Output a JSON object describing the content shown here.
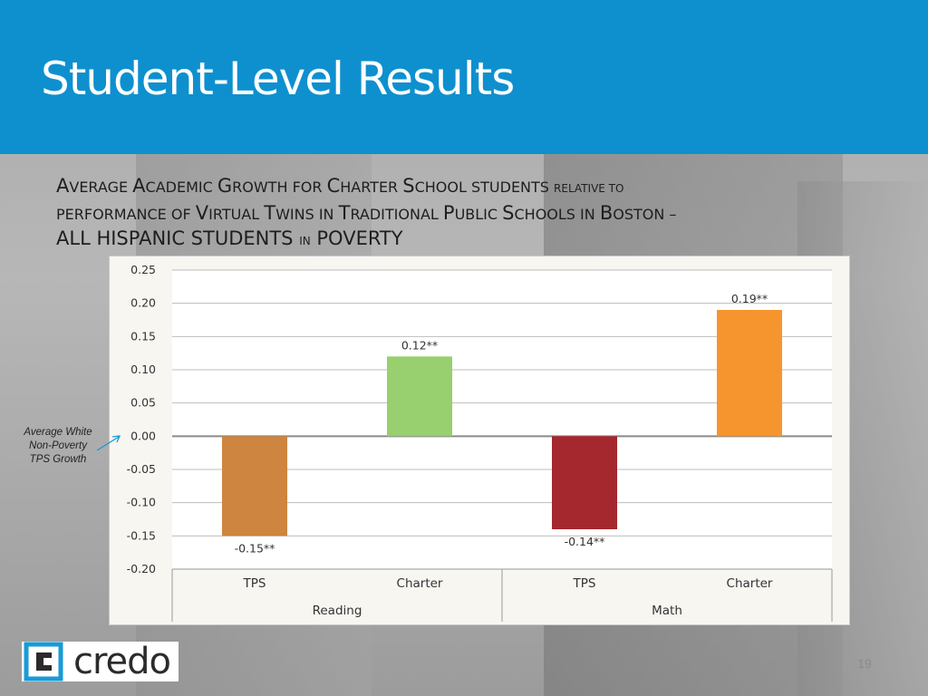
{
  "slide": {
    "title": "Student-Level Results",
    "subtitle": {
      "line1": [
        {
          "t": "A",
          "c": "big"
        },
        {
          "t": "VERAGE ",
          "c": "sc"
        },
        {
          "t": "A",
          "c": "big"
        },
        {
          "t": "CADEMIC ",
          "c": "sc"
        },
        {
          "t": "G",
          "c": "big"
        },
        {
          "t": "ROWTH FOR ",
          "c": "sc"
        },
        {
          "t": "C",
          "c": "big"
        },
        {
          "t": "HARTER ",
          "c": "sc"
        },
        {
          "t": "S",
          "c": "big"
        },
        {
          "t": "CHOOL STUDENTS ",
          "c": "sc"
        },
        {
          "t": "RELATIVE TO",
          "c": "small"
        }
      ],
      "line2": [
        {
          "t": "PERFORMANCE OF ",
          "c": "sc"
        },
        {
          "t": "V",
          "c": "big"
        },
        {
          "t": "IRTUAL ",
          "c": "sc"
        },
        {
          "t": "T",
          "c": "big"
        },
        {
          "t": "WINS IN ",
          "c": "sc"
        },
        {
          "t": "T",
          "c": "big"
        },
        {
          "t": "RADITIONAL ",
          "c": "sc"
        },
        {
          "t": "P",
          "c": "big"
        },
        {
          "t": "UBLIC ",
          "c": "sc"
        },
        {
          "t": "S",
          "c": "big"
        },
        {
          "t": "CHOOLS IN ",
          "c": "sc"
        },
        {
          "t": "B",
          "c": "big"
        },
        {
          "t": "OSTON –",
          "c": "sc"
        }
      ],
      "line3": [
        {
          "t": "ALL HISPANIC STUDENTS ",
          "c": "big"
        },
        {
          "t": "IN",
          "c": "small"
        },
        {
          "t": " POVERTY",
          "c": "big"
        }
      ]
    },
    "annotation": "Average White Non-Poverty TPS Growth",
    "logo_text": "credo",
    "page_number": "19"
  },
  "colors": {
    "header": "#0e90cf",
    "annotation_arrow": "#1a9ad6"
  },
  "chart_data": {
    "type": "bar",
    "ylim": [
      -0.2,
      0.25
    ],
    "yticks": [
      "0.25",
      "0.20",
      "0.15",
      "0.10",
      "0.05",
      "0.00",
      "-0.05",
      "-0.10",
      "-0.15",
      "-0.20"
    ],
    "ytick_values": [
      0.25,
      0.2,
      0.15,
      0.1,
      0.05,
      0.0,
      -0.05,
      -0.1,
      -0.15,
      -0.2
    ],
    "grid": true,
    "categories": [
      "TPS",
      "Charter",
      "TPS",
      "Charter"
    ],
    "groups": [
      {
        "label": "Reading",
        "categories": [
          "TPS",
          "Charter"
        ]
      },
      {
        "label": "Math",
        "categories": [
          "TPS",
          "Charter"
        ]
      }
    ],
    "values": [
      -0.15,
      0.12,
      -0.14,
      0.19
    ],
    "data_labels": [
      "-0.15**",
      "0.12**",
      "-0.14**",
      "0.19**"
    ],
    "bar_colors": [
      "#cd853f",
      "#98cf6f",
      "#a4282d",
      "#f6952d"
    ]
  }
}
